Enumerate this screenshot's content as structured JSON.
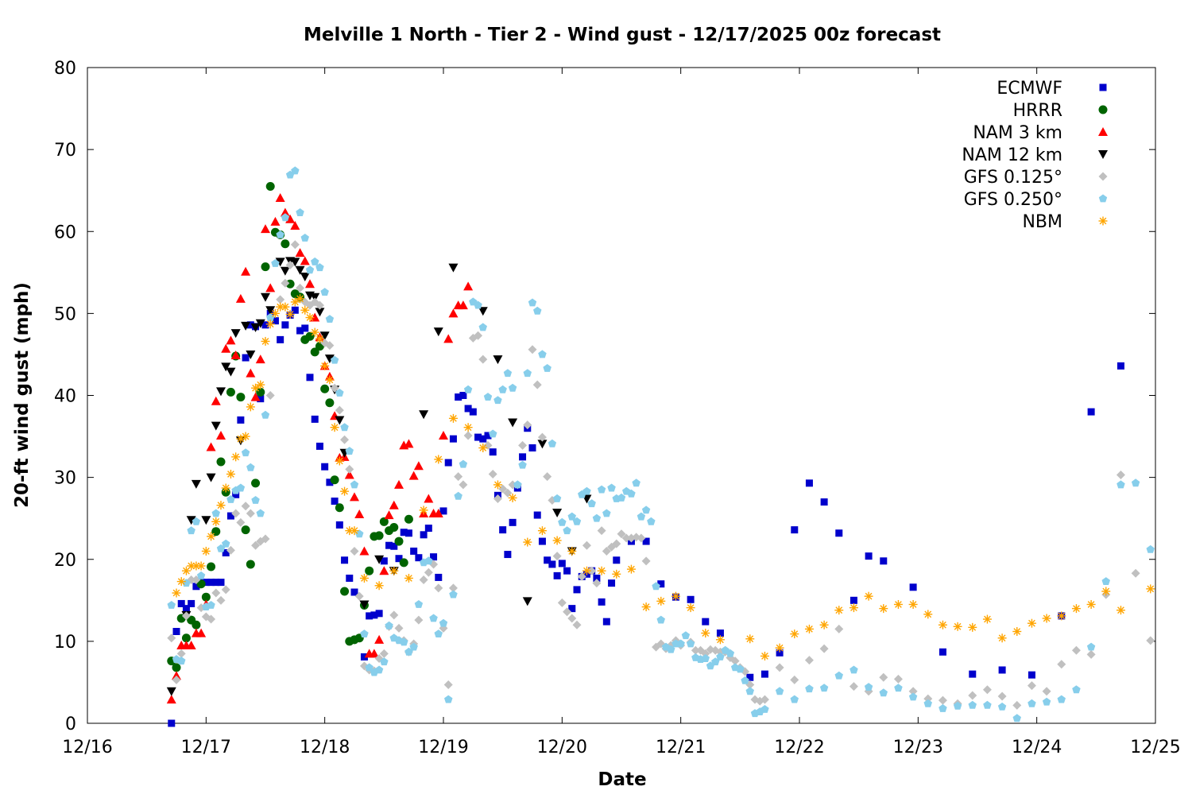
{
  "chart_data": {
    "type": "scatter",
    "title": "Melville 1 North - Tier 2 - Wind gust - 12/17/2025 00z forecast",
    "xlabel": "Date",
    "ylabel": "20-ft wind gust (mph)",
    "x_units": "hours since 12/16 00:00",
    "xlim": [
      0,
      216
    ],
    "ylim": [
      0,
      80
    ],
    "x_ticks": [
      {
        "hour": 0,
        "label": "12/16"
      },
      {
        "hour": 24,
        "label": "12/17"
      },
      {
        "hour": 48,
        "label": "12/18"
      },
      {
        "hour": 72,
        "label": "12/19"
      },
      {
        "hour": 96,
        "label": "12/20"
      },
      {
        "hour": 120,
        "label": "12/21"
      },
      {
        "hour": 144,
        "label": "12/22"
      },
      {
        "hour": 168,
        "label": "12/23"
      },
      {
        "hour": 192,
        "label": "12/24"
      },
      {
        "hour": 216,
        "label": "12/25"
      }
    ],
    "y_ticks": [
      "0",
      "10",
      "20",
      "30",
      "40",
      "50",
      "60",
      "70",
      "80"
    ],
    "legend_position": "top-right",
    "grid": false,
    "series": [
      {
        "name": "ECMWF",
        "marker": "square",
        "color": "#0000cc",
        "segments": [
          {
            "start_hour": 17,
            "step_hours": 1,
            "values": [
              0,
              11.2,
              14.6,
              14.0,
              14.6,
              16.7,
              17.2,
              17.2,
              17.2,
              17.2,
              17.2,
              20.8,
              25.3,
              27.9,
              37.0,
              44.6,
              48.6,
              48.4,
              39.6,
              48.6,
              50.0,
              49.1,
              46.8,
              48.6,
              49.8,
              50.4,
              47.9,
              48.2,
              42.2,
              37.1,
              33.8,
              31.3,
              29.4,
              27.1,
              24.2,
              19.9,
              17.7,
              16.0,
              null,
              8.1,
              13.1,
              13.2,
              13.4,
              19.8,
              21.7,
              21.6,
              20.1,
              23.3,
              23.2,
              21.0,
              20.2,
              23.0,
              23.8,
              20.3,
              17.8,
              25.9,
              31.8,
              34.7,
              39.8,
              40.0,
              38.4,
              38.0,
              34.9,
              34.7,
              35.1,
              33.1,
              27.8,
              23.6,
              20.6,
              24.5,
              28.7,
              32.5,
              36.0,
              33.6,
              25.4,
              22.2,
              19.9,
              19.4,
              18.0,
              19.5,
              18.6,
              14.0,
              16.3,
              17.9,
              18.2,
              18.6,
              17.7,
              14.8,
              12.4,
              17.1,
              19.9
            ]
          },
          {
            "start_hour": 110,
            "step_hours": 3,
            "values": [
              22.2,
              22.2,
              17.0,
              15.4,
              15.1,
              12.4,
              11.0,
              null,
              5.6,
              6.0,
              8.6,
              23.6,
              29.3,
              27.0,
              23.2,
              15.0,
              20.4,
              19.8,
              null,
              16.6,
              null,
              8.7,
              null,
              6.0,
              null,
              6.5,
              null,
              5.9,
              null,
              13.1,
              null,
              38.0,
              null,
              43.6
            ]
          }
        ]
      },
      {
        "name": "HRRR",
        "marker": "circle",
        "color": "#006400",
        "segments": [
          {
            "start_hour": 17,
            "step_hours": 1,
            "values": [
              7.6,
              6.8,
              12.8,
              10.4,
              12.6,
              12.0,
              17.0,
              15.4,
              19.1,
              23.4,
              31.9,
              28.2,
              40.4,
              44.8,
              39.8,
              23.6,
              19.4,
              29.3,
              40.4,
              55.7,
              65.5,
              59.9,
              59.6,
              58.5,
              53.6,
              52.4,
              52.0,
              46.8,
              47.2,
              45.3,
              46.0,
              40.8,
              39.1,
              29.7,
              26.3,
              16.1,
              10.0,
              10.2,
              10.4,
              14.4,
              18.6,
              22.8,
              22.9,
              24.6,
              23.5,
              23.9,
              22.2,
              19.6,
              24.9
            ]
          }
        ]
      },
      {
        "name": "NAM 3 km",
        "marker": "triangle-up",
        "color": "#ff0000",
        "segments": [
          {
            "start_hour": 17,
            "step_hours": 1,
            "values": [
              2.9,
              5.8,
              9.5,
              9.5,
              9.5,
              11.0,
              11.0,
              14.5,
              33.7,
              39.3,
              35.1,
              45.7,
              46.7,
              44.9,
              51.8,
              55.1,
              42.7,
              39.8,
              44.4,
              60.3,
              53.1,
              61.2,
              64.1,
              62.3,
              61.5,
              60.7,
              57.4,
              56.4,
              53.6,
              49.5,
              47.1,
              43.6,
              42.3,
              37.5,
              32.4,
              32.5,
              30.3,
              27.6,
              25.5,
              21.0,
              8.5,
              8.5,
              10.2,
              18.6,
              25.4,
              26.6,
              29.1,
              33.9,
              34.1,
              30.2,
              31.4,
              25.6,
              27.4,
              25.6,
              25.6,
              35.1,
              46.9,
              50.0,
              51.0,
              51.0,
              53.3
            ]
          }
        ]
      },
      {
        "name": "NAM 12 km",
        "marker": "triangle-down",
        "color": "#000000",
        "points": [
          [
            17,
            3.9
          ],
          [
            20,
            13.2
          ],
          [
            21,
            24.8
          ],
          [
            22,
            29.2
          ],
          [
            24,
            24.8
          ],
          [
            25,
            30.0
          ],
          [
            26,
            36.3
          ],
          [
            27,
            40.5
          ],
          [
            28,
            43.5
          ],
          [
            29,
            42.9
          ],
          [
            30,
            47.6
          ],
          [
            31,
            34.5
          ],
          [
            32,
            48.5
          ],
          [
            33,
            45.0
          ],
          [
            34,
            48.3
          ],
          [
            35,
            48.8
          ],
          [
            36,
            52.0
          ],
          [
            37,
            50.4
          ],
          [
            39,
            56.3
          ],
          [
            40,
            55.2
          ],
          [
            41,
            56.4
          ],
          [
            42,
            56.3
          ],
          [
            43,
            55.3
          ],
          [
            44,
            54.5
          ],
          [
            45,
            52.2
          ],
          [
            46,
            52.0
          ],
          [
            47,
            50.2
          ],
          [
            48,
            47.3
          ],
          [
            49,
            44.5
          ],
          [
            50,
            40.7
          ],
          [
            51,
            37.0
          ],
          [
            52,
            33.0
          ],
          [
            56,
            14.5
          ],
          [
            59,
            20.0
          ],
          [
            62,
            18.6
          ],
          [
            68,
            37.7
          ],
          [
            71,
            47.8
          ],
          [
            74,
            55.6
          ],
          [
            80,
            50.3
          ],
          [
            83,
            44.4
          ],
          [
            86,
            36.7
          ],
          [
            89,
            14.9
          ],
          [
            92,
            34.1
          ],
          [
            95,
            25.7
          ],
          [
            98,
            21.0
          ],
          [
            101,
            27.4
          ]
        ]
      },
      {
        "name": "GFS 0.125°",
        "marker": "diamond",
        "color": "#c0c0c0",
        "segments": [
          {
            "start_hour": 17,
            "step_hours": 1,
            "values": [
              10.4,
              5.3,
              8.5,
              13.1,
              17.5,
              17.5,
              14.1,
              13.0,
              12.7,
              15.9,
              15.0,
              16.3,
              21.1,
              25.6,
              24.5,
              26.5,
              25.6,
              21.7,
              22.2,
              22.5,
              40.0,
              null,
              51.7,
              53.7,
              55.9,
              58.4,
              53.1,
              51.4,
              51.0,
              51.4,
              51.0,
              46.4,
              46.1,
              40.9,
              38.2,
              34.6,
              31.0,
              21.0,
              15.5,
              7.0,
              6.5,
              6.4,
              7.9,
              8.5,
              11.8,
              13.2,
              11.6,
              10.1,
              8.7,
              9.7,
              12.6,
              17.5,
              18.4,
              19.4,
              16.5,
              11.6,
              4.7,
              16.5,
              30.1,
              29.1,
              35.1,
              47.0,
              47.3,
              44.4,
              33.9,
              30.4,
              27.4,
              28.6,
              28.1,
              29.1,
              29.1,
              33.9,
              36.4,
              45.6,
              41.3,
              34.9,
              30.1,
              27.2,
              20.4,
              14.7,
              13.6,
              12.8,
              12.0,
              17.9,
              21.7,
              18.6,
              17.1,
              23.5,
              21.0,
              21.5,
              21.9,
              23.1,
              22.6,
              22.6,
              22.7,
              22.6,
              19.8,
              null,
              9.3,
              9.7,
              9.1,
              9.5,
              10.1,
              9.5,
              null,
              9.9,
              8.9,
              8.9,
              8.5,
              9.0,
              8.9,
              8.7,
              8.7,
              8.0,
              7.6,
              6.8,
              6.3,
              4.7,
              2.9,
              2.7,
              2.9
            ]
          },
          {
            "start_hour": 140,
            "step_hours": 3,
            "values": [
              6.8,
              5.3,
              7.7,
              9.1,
              11.5,
              4.5,
              3.9,
              5.6,
              5.4,
              3.9,
              3.0,
              2.8,
              2.4,
              3.4,
              4.1,
              3.3,
              2.2,
              4.6,
              3.9,
              7.2,
              8.9,
              8.4,
              15.7,
              30.3,
              18.3,
              10.1
            ]
          }
        ]
      },
      {
        "name": "GFS 0.250°",
        "marker": "pentagon",
        "color": "#87ceeb",
        "segments": [
          {
            "start_hour": 17,
            "step_hours": 1,
            "values": [
              14.4,
              7.8,
              7.6,
              17.1,
              23.5,
              24.6,
              18.0,
              14.2,
              14.4,
              25.6,
              21.3,
              21.9,
              27.3,
              28.4,
              28.7,
              33.0,
              31.2,
              27.2,
              25.6,
              37.6,
              49.5,
              56.1,
              59.6,
              61.7,
              66.9,
              67.4,
              62.3,
              59.2,
              55.3,
              56.3,
              55.6,
              52.6,
              49.3,
              44.3,
              40.3,
              36.1,
              33.2,
              29.1,
              23.1,
              10.9,
              6.8,
              6.2,
              6.5,
              7.5,
              11.9,
              10.4,
              10.1,
              9.9,
              8.7,
              9.3,
              14.5,
              19.6,
              19.8,
              12.8,
              10.9,
              12.2,
              2.9,
              15.7,
              27.7,
              31.6,
              40.7,
              51.4,
              51.0,
              48.3,
              39.8,
              35.3,
              39.4,
              40.7,
              42.7,
              40.9,
              29.1,
              31.5,
              42.7,
              51.3,
              50.3,
              45.0,
              43.3,
              34.1,
              27.4,
              24.5,
              23.5,
              25.2,
              24.6,
              27.9,
              28.3,
              26.8,
              25.0,
              28.5,
              25.6,
              28.7,
              27.4,
              27.5,
              28.3,
              28.0,
              29.3,
              25.2,
              26.0,
              24.6,
              16.7,
              12.6,
              9.3,
              9.0,
              9.7,
              9.7,
              10.7,
              9.7,
              8.0,
              7.8,
              7.9,
              7.0,
              7.5,
              8.1,
              8.9,
              8.5,
              6.8,
              6.6,
              5.2,
              3.9,
              1.2,
              1.4,
              1.7
            ]
          },
          {
            "start_hour": 140,
            "step_hours": 3,
            "values": [
              3.9,
              2.9,
              4.2,
              4.3,
              5.8,
              6.5,
              4.4,
              3.7,
              4.3,
              3.2,
              2.4,
              1.8,
              2.1,
              2.2,
              2.2,
              2.0,
              0.6,
              2.4,
              2.6,
              2.9,
              4.1,
              9.3,
              17.3,
              29.1,
              29.3,
              21.2
            ]
          }
        ]
      },
      {
        "name": "NBM",
        "marker": "asterisk",
        "color": "#ffa500",
        "segments": [
          {
            "start_hour": 18,
            "step_hours": 1,
            "values": [
              15.9,
              17.3,
              18.6,
              19.2,
              19.2,
              19.2,
              21.0,
              22.8,
              24.6,
              26.6,
              28.7,
              30.4,
              32.5,
              34.7,
              35.0,
              38.6,
              40.9,
              41.3,
              46.6,
              48.7,
              50.0,
              50.8,
              50.8,
              49.9,
              51.4,
              51.8,
              50.4,
              49.5,
              47.7,
              46.9,
              43.6,
              41.9,
              36.1,
              32.0,
              28.3,
              23.5,
              23.5
            ]
          },
          {
            "start_hour": 56,
            "step_hours": 3,
            "values": [
              17.7,
              16.8,
              18.6,
              17.7,
              26.0,
              32.2,
              37.2,
              36.1,
              33.6,
              29.1,
              27.5,
              22.1,
              23.5,
              22.3,
              21.0,
              18.6,
              18.6,
              18.2,
              18.8,
              14.2,
              14.9,
              15.5,
              14.1,
              11.0,
              10.2,
              null,
              10.3,
              8.2,
              9.2,
              10.9,
              11.5,
              12.0,
              13.8,
              14.1,
              15.5,
              14.0,
              14.5,
              14.5,
              13.3,
              12.0,
              11.8,
              11.7,
              12.7,
              10.4,
              11.2,
              12.2,
              12.8,
              13.1,
              14.0,
              14.5,
              16.1,
              13.8,
              null,
              16.4
            ]
          }
        ]
      }
    ]
  }
}
